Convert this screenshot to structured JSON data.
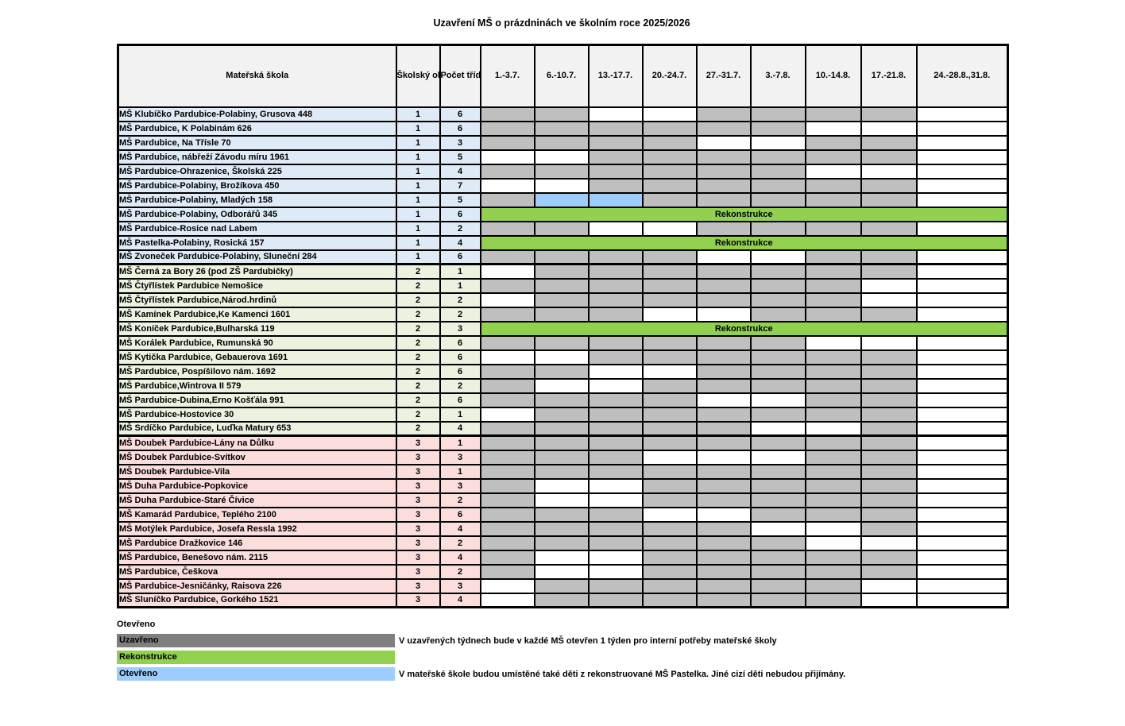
{
  "title": "Uzavření MŠ o prázdninách ve školním roce 2025/2026",
  "colors": {
    "closed": "#BFBFBF",
    "open": "#FFFFFF",
    "special_open": "#9DCDFF",
    "reconstruction": "#92D050",
    "legend_closed": "#7F7F7F",
    "header_bg": "#F2F2F2",
    "border": "#000000",
    "group1_tint": "#DEEBF7",
    "group2_tint": "#EBF3E0",
    "group3_tint": "#FBDDDC"
  },
  "table": {
    "columns": [
      "Mateřská škola",
      "Školský obvod",
      "Počet tříd",
      "1.-3.7.",
      "6.-10.7.",
      "13.-17.7.",
      "20.-24.7.",
      "27.-31.7.",
      "3.-7.8.",
      "10.-14.8.",
      "17.-21.8.",
      "24.-28.8.,31.8."
    ],
    "reconstruction_label": "Rekonstrukce",
    "groups": [
      {
        "district": "1",
        "tint": "#DEEBF7",
        "rows": [
          {
            "name": "MŠ Klubíčko Pardubice-Polabiny, Grusova 448",
            "district": "1",
            "classes": "6",
            "weeks": [
              "C",
              "C",
              "O",
              "O",
              "C",
              "C",
              "C",
              "C",
              "O"
            ]
          },
          {
            "name": "MŠ Pardubice, K Polabinám 626",
            "district": "1",
            "classes": "6",
            "weeks": [
              "C",
              "C",
              "C",
              "C",
              "C",
              "C",
              "O",
              "O",
              "O"
            ]
          },
          {
            "name": "MŠ Pardubice, Na Třísle 70",
            "district": "1",
            "classes": "3",
            "weeks": [
              "C",
              "C",
              "C",
              "C",
              "O",
              "O",
              "C",
              "C",
              "O"
            ]
          },
          {
            "name": "MŠ Pardubice, nábřeží Závodu míru 1961",
            "district": "1",
            "classes": "5",
            "weeks": [
              "O",
              "O",
              "C",
              "C",
              "C",
              "C",
              "C",
              "C",
              "O"
            ]
          },
          {
            "name": "MŠ Pardubice-Ohrazenice, Školská 225",
            "district": "1",
            "classes": "4",
            "weeks": [
              "C",
              "C",
              "C",
              "C",
              "C",
              "C",
              "O",
              "O",
              "O"
            ]
          },
          {
            "name": "MŠ Pardubice-Polabiny, Brožíkova 450",
            "district": "1",
            "classes": "7",
            "weeks": [
              "O",
              "O",
              "C",
              "C",
              "C",
              "C",
              "C",
              "C",
              "O"
            ]
          },
          {
            "name": "MŠ Pardubice-Polabiny, Mladých 158",
            "district": "1",
            "classes": "5",
            "weeks": [
              "C",
              "B",
              "B",
              "C",
              "C",
              "C",
              "C",
              "C",
              "O"
            ]
          },
          {
            "name": "MŠ Pardubice-Polabiny, Odborářů 345",
            "district": "1",
            "classes": "6",
            "weeks": "R"
          },
          {
            "name": "MŠ Pardubice-Rosice nad Labem",
            "district": "1",
            "classes": "2",
            "weeks": [
              "C",
              "C",
              "O",
              "O",
              "C",
              "C",
              "C",
              "C",
              "O"
            ]
          },
          {
            "name": "MŠ Pastelka-Polabiny, Rosická 157",
            "district": "1",
            "classes": "4",
            "weeks": "R"
          },
          {
            "name": "MŠ Zvoneček Pardubice-Polabiny, Sluneční 284",
            "district": "1",
            "classes": "6",
            "weeks": [
              "C",
              "C",
              "C",
              "C",
              "O",
              "O",
              "C",
              "C",
              "O"
            ]
          }
        ]
      },
      {
        "district": "2",
        "tint": "#EBF3E0",
        "rows": [
          {
            "name": "MŠ Černá za Bory 26 (pod ZŠ Pardubičky)",
            "district": "2",
            "classes": "1",
            "weeks": [
              "O",
              "C",
              "C",
              "C",
              "C",
              "C",
              "C",
              "C",
              "O"
            ]
          },
          {
            "name": "MŠ Čtyřlístek Pardubice Nemošice",
            "district": "2",
            "classes": "1",
            "weeks": [
              "C",
              "C",
              "C",
              "C",
              "C",
              "C",
              "C",
              "O",
              "O"
            ]
          },
          {
            "name": "MŠ Čtyřlístek Pardubice,Národ.hrdinů",
            "district": "2",
            "classes": "2",
            "weeks": [
              "O",
              "C",
              "C",
              "C",
              "C",
              "C",
              "C",
              "O",
              "O"
            ]
          },
          {
            "name": "MŠ Kamínek Pardubice,Ke Kamenci 1601",
            "district": "2",
            "classes": "2",
            "weeks": [
              "C",
              "C",
              "C",
              "O",
              "O",
              "C",
              "C",
              "C",
              "O"
            ]
          },
          {
            "name": "MŠ Koníček Pardubice,Bulharská 119",
            "district": "2",
            "classes": "3",
            "weeks": "R"
          },
          {
            "name": "MŠ Korálek Pardubice, Rumunská 90",
            "district": "2",
            "classes": "6",
            "weeks": [
              "C",
              "C",
              "C",
              "C",
              "C",
              "C",
              "O",
              "O",
              "O"
            ]
          },
          {
            "name": "MŠ Kytička Pardubice, Gebauerova 1691",
            "district": "2",
            "classes": "6",
            "weeks": [
              "O",
              "O",
              "C",
              "C",
              "C",
              "C",
              "C",
              "C",
              "O"
            ]
          },
          {
            "name": "MŠ Pardubice, Pospíšilovo nám. 1692",
            "district": "2",
            "classes": "6",
            "weeks": [
              "C",
              "C",
              "O",
              "O",
              "C",
              "C",
              "C",
              "C",
              "O"
            ]
          },
          {
            "name": "MŠ Pardubice,Wintrova II 579",
            "district": "2",
            "classes": "2",
            "weeks": [
              "C",
              "O",
              "O",
              "C",
              "C",
              "C",
              "C",
              "C",
              "O"
            ]
          },
          {
            "name": "MŠ Pardubice-Dubina,Erno Košťála 991",
            "district": "2",
            "classes": "6",
            "weeks": [
              "C",
              "C",
              "C",
              "C",
              "O",
              "O",
              "C",
              "C",
              "O"
            ]
          },
          {
            "name": "MŠ Pardubice-Hostovice 30",
            "district": "2",
            "classes": "1",
            "weeks": [
              "O",
              "C",
              "C",
              "C",
              "C",
              "C",
              "C",
              "C",
              "O"
            ]
          },
          {
            "name": "MŠ Srdíčko Pardubice, Luďka Matury 653",
            "district": "2",
            "classes": "4",
            "weeks": [
              "C",
              "C",
              "C",
              "C",
              "C",
              "O",
              "O",
              "C",
              "O"
            ]
          }
        ]
      },
      {
        "district": "3",
        "tint": "#FBDDDC",
        "rows": [
          {
            "name": "MŠ Doubek Pardubice-Lány na Důlku",
            "district": "3",
            "classes": "1",
            "weeks": [
              "C",
              "C",
              "C",
              "C",
              "C",
              "C",
              "C",
              "C",
              "O"
            ]
          },
          {
            "name": "MŠ Doubek Pardubice-Svítkov",
            "district": "3",
            "classes": "3",
            "weeks": [
              "C",
              "C",
              "C",
              "O",
              "O",
              "O",
              "C",
              "C",
              "O"
            ]
          },
          {
            "name": "MŠ Doubek Pardubice-Vila",
            "district": "3",
            "classes": "1",
            "weeks": [
              "C",
              "C",
              "C",
              "C",
              "C",
              "C",
              "C",
              "C",
              "O"
            ]
          },
          {
            "name": "MŠ Duha Pardubice-Popkovice",
            "district": "3",
            "classes": "3",
            "weeks": [
              "C",
              "O",
              "O",
              "C",
              "C",
              "C",
              "C",
              "C",
              "O"
            ]
          },
          {
            "name": "MŠ Duha Pardubice-Staré Čívice",
            "district": "3",
            "classes": "2",
            "weeks": [
              "C",
              "O",
              "O",
              "C",
              "C",
              "C",
              "C",
              "C",
              "O"
            ]
          },
          {
            "name": "MŠ Kamarád Pardubice, Teplého 2100",
            "district": "3",
            "classes": "6",
            "weeks": [
              "C",
              "C",
              "C",
              "O",
              "O",
              "C",
              "C",
              "C",
              "O"
            ]
          },
          {
            "name": "MŠ Motýlek Pardubice, Josefa Ressla 1992",
            "district": "3",
            "classes": "4",
            "weeks": [
              "C",
              "C",
              "C",
              "C",
              "C",
              "O",
              "O",
              "C",
              "O"
            ]
          },
          {
            "name": "MŠ Pardubice Dražkovice 146",
            "district": "3",
            "classes": "2",
            "weeks": [
              "C",
              "C",
              "C",
              "C",
              "C",
              "C",
              "O",
              "O",
              "O"
            ]
          },
          {
            "name": "MŠ Pardubice, Benešovo nám. 2115",
            "district": "3",
            "classes": "4",
            "weeks": [
              "C",
              "O",
              "O",
              "C",
              "C",
              "C",
              "C",
              "C",
              "O"
            ]
          },
          {
            "name": "MŠ Pardubice, Češkova",
            "district": "3",
            "classes": "2",
            "weeks": [
              "C",
              "O",
              "O",
              "C",
              "C",
              "C",
              "C",
              "C",
              "O"
            ]
          },
          {
            "name": "MŠ Pardubice-Jesničánky, Raisova 226",
            "district": "3",
            "classes": "3",
            "weeks": [
              "O",
              "C",
              "C",
              "C",
              "C",
              "C",
              "C",
              "O",
              "O"
            ]
          },
          {
            "name": "MŠ Sluníčko Pardubice, Gorkého 1521",
            "district": "3",
            "classes": "4",
            "weeks": [
              "O",
              "C",
              "C",
              "C",
              "C",
              "C",
              "C",
              "O",
              "O"
            ]
          }
        ]
      }
    ]
  },
  "legend": {
    "open_plain": "Otevřeno",
    "closed": "Uzavřeno",
    "closed_note": "V uzavřených týdnech bude v každé MŠ otevřen 1 týden pro interní potřeby mateřské školy",
    "reconstruction": "Rekonstrukce",
    "special_open": "Otevřeno",
    "special_note": "V mateřské škole budou umístěné také děti z rekonstruované MŠ Pastelka. Jiné cizí děti nebudou přijímány."
  }
}
